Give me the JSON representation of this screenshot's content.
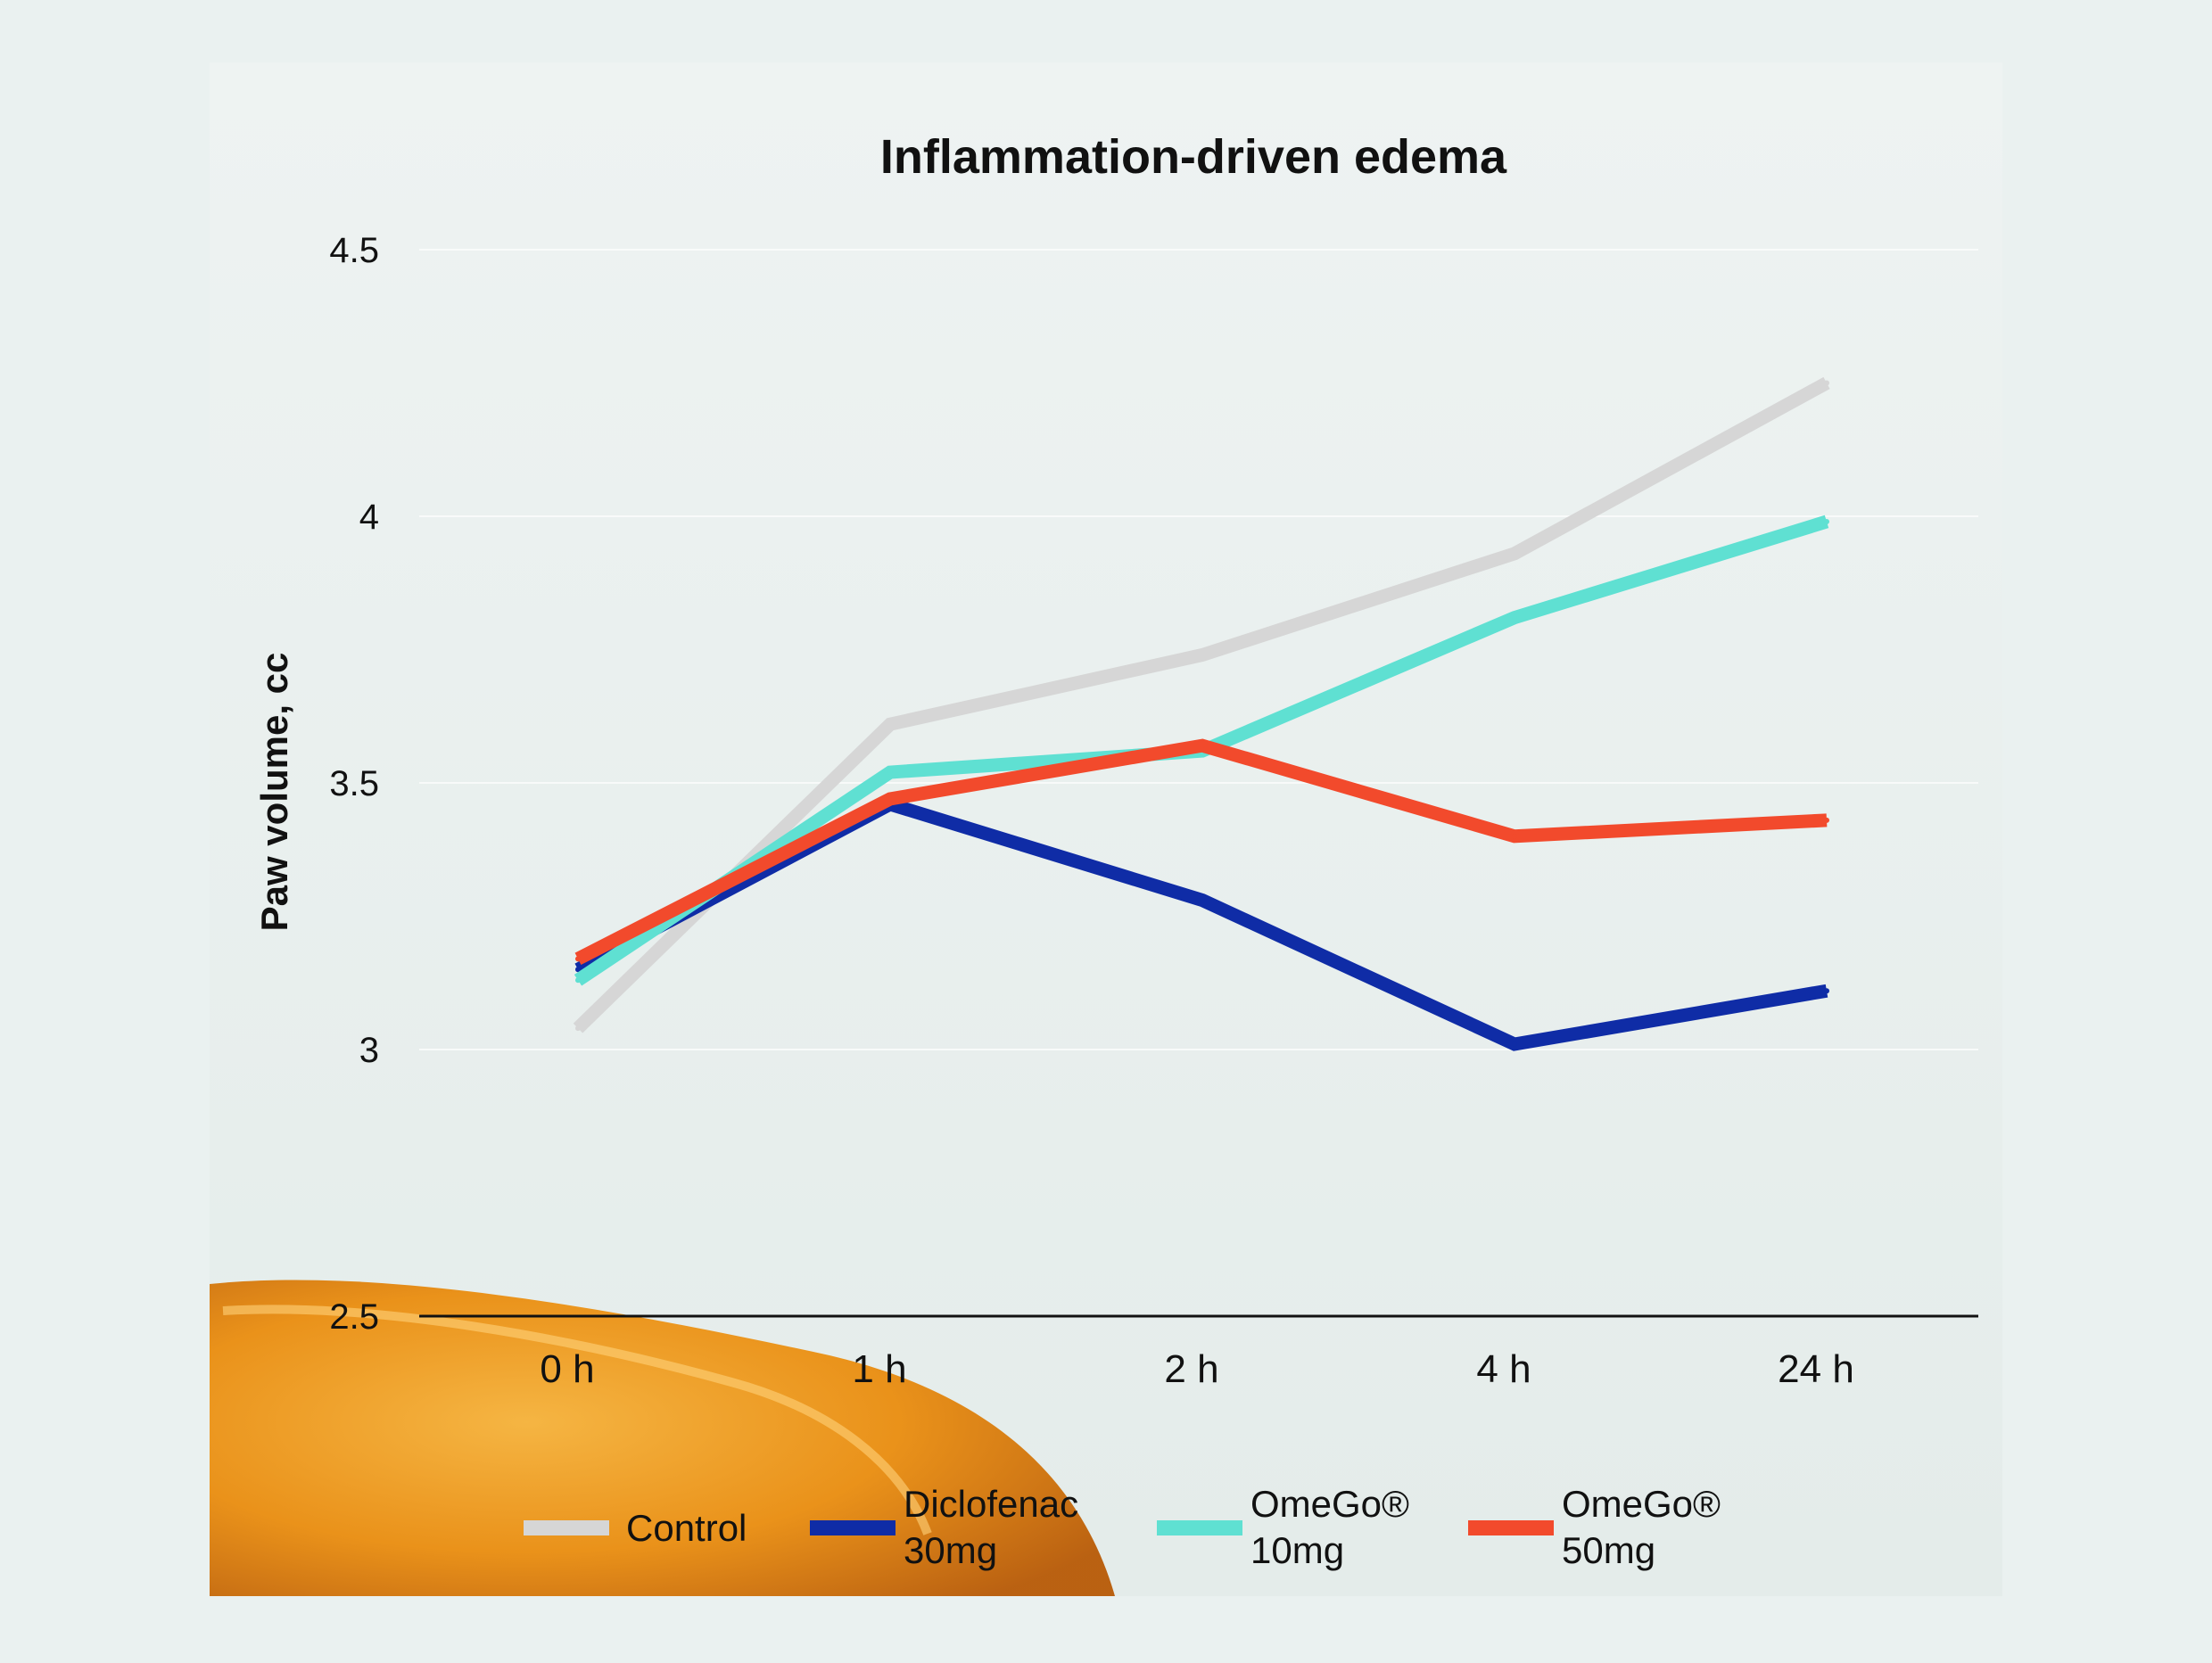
{
  "chart_data": {
    "type": "line",
    "title": "Inflammation-driven edema",
    "xlabel": "",
    "ylabel": "Paw volume, cc",
    "categories": [
      "0 h",
      "1 h",
      "2 h",
      "4 h",
      "24 h"
    ],
    "ylim": [
      2.5,
      4.5
    ],
    "yticks": [
      "2.5",
      "3",
      "3.5",
      "4",
      "4.5"
    ],
    "grid": true,
    "legend_position": "bottom",
    "series": [
      {
        "name": "Control",
        "label_lines": [
          "Control"
        ],
        "color": "#d6d6d6",
        "values": [
          3.04,
          3.61,
          3.74,
          3.93,
          4.25
        ]
      },
      {
        "name": "Diclofenac 30mg",
        "label_lines": [
          "Diclofenac",
          "30mg"
        ],
        "color": "#0f2ca6",
        "values": [
          3.15,
          3.46,
          3.28,
          3.01,
          3.11
        ]
      },
      {
        "name": "OmeGo® 10mg",
        "label_lines": [
          "OmeGo®",
          "10mg"
        ],
        "color": "#5fe0d2",
        "values": [
          3.13,
          3.52,
          3.56,
          3.81,
          3.99
        ]
      },
      {
        "name": "OmeGo® 50mg",
        "label_lines": [
          "OmeGo®",
          "50mg"
        ],
        "color": "#f24a2c",
        "values": [
          3.17,
          3.47,
          3.57,
          3.4,
          3.43
        ]
      }
    ]
  }
}
